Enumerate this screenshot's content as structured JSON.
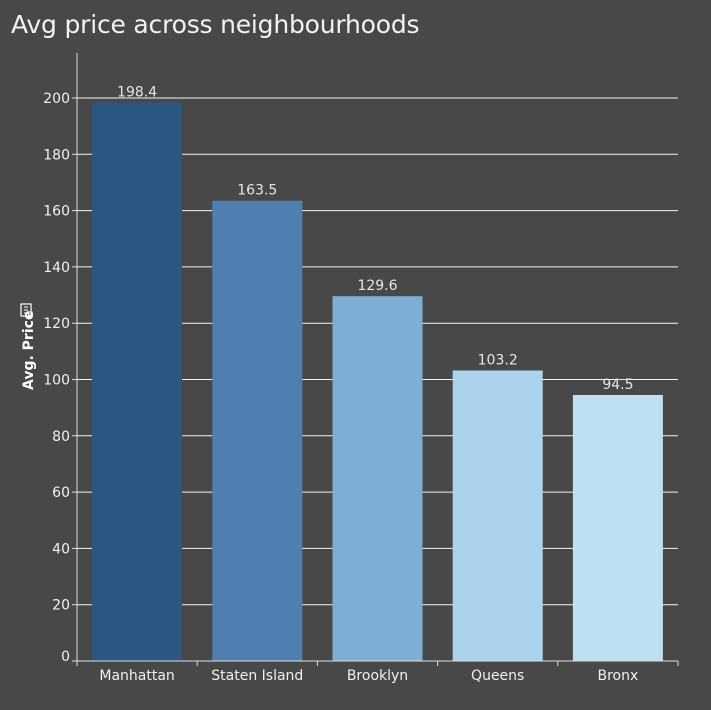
{
  "chart_data": {
    "type": "bar",
    "title": "Avg price across neighbourhoods",
    "xlabel": "",
    "ylabel": "Avg. Price",
    "categories": [
      "Manhattan",
      "Staten Island",
      "Brooklyn",
      "Queens",
      "Bronx"
    ],
    "values": [
      198.4,
      163.5,
      129.6,
      103.2,
      94.5
    ],
    "value_labels": [
      "198.4",
      "163.5",
      "129.6",
      "103.2",
      "94.5"
    ],
    "bar_colors": [
      "#2b5783",
      "#4e7fb0",
      "#7eaed3",
      "#acd3ec",
      "#bde0f3"
    ],
    "ylim": [
      0,
      200
    ],
    "yticks": [
      0,
      20,
      40,
      60,
      80,
      100,
      120,
      140,
      160,
      180,
      200
    ],
    "grid": true,
    "background": "#484848",
    "ylabel_icon": "filter-icon"
  }
}
